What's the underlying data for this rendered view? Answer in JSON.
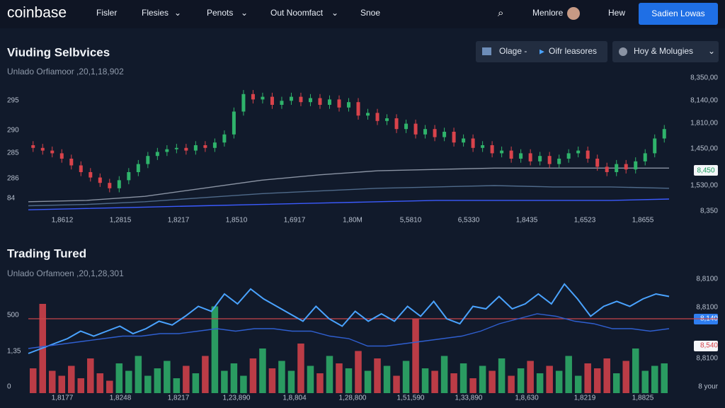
{
  "nav": {
    "logo": "coinbase",
    "items": [
      "Fisler",
      "Flesies",
      "Penots",
      "Out Noomfact",
      "Snoe"
    ],
    "user": "Menlore",
    "link": "Hew",
    "button": "Sadien Lowas"
  },
  "top_panel": {
    "title": "Viuding Selbvices",
    "subtitle": "Unlado Orfiamoor ,20,1,18,902",
    "controls": [
      "Olage -",
      "Oifr leasores",
      "Hoy & Molugies"
    ],
    "y_labels_left": [
      "295",
      "290",
      "285",
      "286",
      "84"
    ],
    "y_labels_right": [
      "8,350,00",
      "8,140,00",
      "1,810,00",
      "1,450,00",
      "1,530,00",
      "8,350"
    ],
    "badge": "8,450",
    "x_labels": [
      "1,8612",
      "1,2815",
      "1,8217",
      "1,8510",
      "1,6917",
      "1,80M",
      "5,5810",
      "6,5330",
      "1,8435",
      "1,6523",
      "1,8655"
    ],
    "chart": {
      "ylim": [
        0,
        100
      ],
      "open": [
        50,
        48,
        46,
        44,
        40,
        35,
        30,
        26,
        22,
        18,
        24,
        30,
        36,
        42,
        45,
        47,
        48,
        46,
        50,
        48,
        52,
        58,
        75,
        88,
        84,
        86,
        80,
        83,
        86,
        82,
        85,
        80,
        84,
        78,
        82,
        72,
        74,
        68,
        70,
        62,
        66,
        58,
        62,
        56,
        60,
        52,
        55,
        48,
        50,
        44,
        46,
        40,
        44,
        38,
        42,
        36,
        40,
        44,
        46,
        40,
        34,
        30,
        36,
        32,
        38,
        44,
        55
      ],
      "close": [
        48,
        46,
        44,
        40,
        35,
        30,
        26,
        22,
        18,
        24,
        30,
        36,
        42,
        45,
        47,
        48,
        46,
        50,
        48,
        52,
        58,
        75,
        88,
        84,
        86,
        80,
        83,
        86,
        82,
        85,
        80,
        84,
        78,
        82,
        72,
        74,
        68,
        70,
        62,
        66,
        58,
        62,
        56,
        60,
        52,
        55,
        48,
        50,
        44,
        46,
        40,
        44,
        38,
        42,
        36,
        40,
        44,
        46,
        40,
        34,
        30,
        36,
        32,
        38,
        44,
        55,
        62
      ],
      "high": [
        53,
        51,
        49,
        47,
        43,
        38,
        33,
        29,
        25,
        27,
        33,
        39,
        45,
        48,
        50,
        51,
        51,
        53,
        53,
        55,
        61,
        78,
        91,
        91,
        89,
        89,
        86,
        89,
        89,
        88,
        88,
        87,
        87,
        85,
        85,
        77,
        77,
        73,
        73,
        69,
        69,
        65,
        65,
        63,
        63,
        58,
        58,
        53,
        53,
        49,
        49,
        47,
        47,
        45,
        45,
        43,
        47,
        49,
        49,
        43,
        37,
        39,
        39,
        41,
        47,
        58,
        65
      ],
      "low": [
        45,
        43,
        41,
        37,
        32,
        27,
        23,
        19,
        15,
        15,
        21,
        27,
        33,
        39,
        42,
        44,
        43,
        43,
        45,
        45,
        49,
        55,
        72,
        81,
        81,
        77,
        77,
        80,
        79,
        79,
        77,
        77,
        75,
        75,
        69,
        69,
        65,
        65,
        59,
        59,
        55,
        55,
        53,
        53,
        49,
        49,
        45,
        45,
        41,
        41,
        37,
        37,
        35,
        35,
        33,
        33,
        37,
        41,
        37,
        31,
        27,
        27,
        29,
        29,
        35,
        41,
        52
      ],
      "up_color": "#2fb36b",
      "down_color": "#d9434b",
      "lines": [
        {
          "color": "#8a93a3",
          "values": [
            8,
            9,
            12,
            18,
            24,
            28,
            31,
            32,
            33,
            33,
            33,
            33
          ]
        },
        {
          "color": "#4f6a8a",
          "values": [
            5,
            6,
            8,
            11,
            14,
            16,
            18,
            19,
            20,
            19,
            19,
            18
          ]
        },
        {
          "color": "#3b5bff",
          "values": [
            2,
            3,
            4,
            5,
            6,
            7,
            8,
            9,
            9,
            9,
            9,
            10
          ]
        }
      ]
    }
  },
  "bottom_panel": {
    "title": "Trading Tured",
    "subtitle": "Unlado Orfamoen ,20,1,28,301",
    "y_labels_left": [
      "500",
      "1,35",
      "0"
    ],
    "y_labels_right": [
      "8,8100",
      "8,8100",
      "8,140",
      "8,540",
      "8,8100",
      "8 your"
    ],
    "x_labels": [
      "1,8177",
      "1,8248",
      "1,8217",
      "1,23,890",
      "1,8,804",
      "1,28,800",
      "1,51,590",
      "1,33,890",
      "1,8,630",
      "1,8219",
      "1,8825"
    ],
    "chart": {
      "ylim": [
        0,
        100
      ],
      "volume": [
        20,
        72,
        18,
        14,
        22,
        12,
        28,
        16,
        10,
        24,
        18,
        30,
        14,
        20,
        26,
        12,
        22,
        16,
        30,
        70,
        18,
        24,
        14,
        28,
        36,
        20,
        26,
        18,
        40,
        22,
        16,
        30,
        24,
        20,
        34,
        18,
        28,
        22,
        14,
        26,
        60,
        20,
        18,
        30,
        16,
        24,
        12,
        22,
        18,
        28,
        14,
        20,
        26,
        16,
        22,
        18,
        30,
        14,
        24,
        20,
        28,
        16,
        26,
        36,
        18,
        22,
        24
      ],
      "level": 60,
      "level_color": "#c7454a",
      "lines": [
        {
          "color": "#4aa3ff",
          "values": [
            32,
            36,
            40,
            44,
            50,
            46,
            50,
            54,
            48,
            52,
            58,
            55,
            62,
            70,
            66,
            80,
            72,
            84,
            76,
            70,
            64,
            58,
            70,
            60,
            54,
            66,
            58,
            64,
            58,
            70,
            62,
            74,
            60,
            56,
            70,
            68,
            78,
            68,
            72,
            80,
            72,
            88,
            76,
            62,
            70,
            74,
            70,
            76,
            80,
            78
          ]
        },
        {
          "color": "#2f5fd0",
          "values": [
            36,
            38,
            40,
            42,
            44,
            46,
            46,
            48,
            48,
            50,
            52,
            50,
            52,
            52,
            50,
            50,
            46,
            44,
            38,
            38,
            40,
            42,
            44,
            46,
            50,
            56,
            60,
            64,
            62,
            58,
            56,
            52,
            52,
            50,
            52
          ]
        }
      ]
    }
  }
}
